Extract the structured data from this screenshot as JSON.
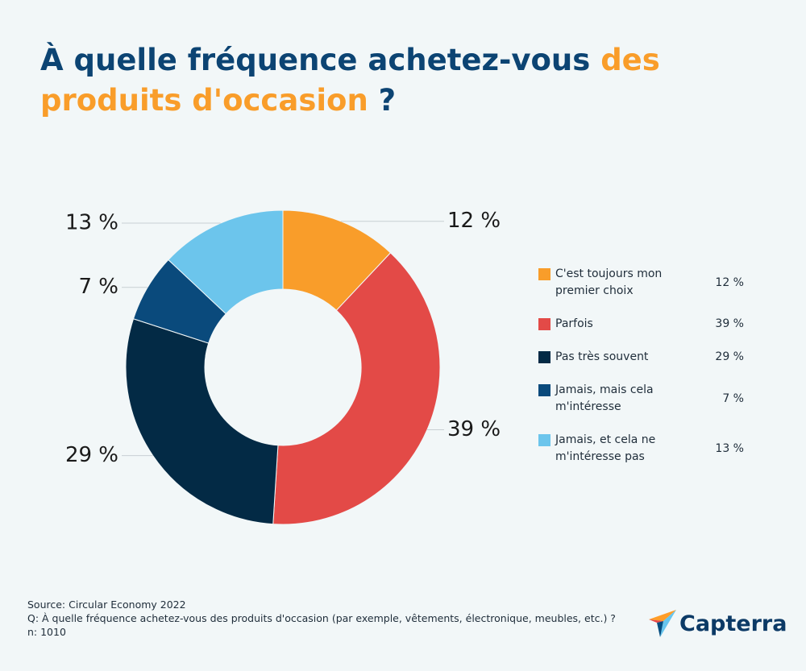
{
  "chart_data": {
    "type": "donut",
    "title": [
      "À quelle fréquence achetez-vous ",
      "des produits d'occasion",
      " ?"
    ],
    "categories": [
      "C'est toujours mon premier choix",
      "Parfois",
      "Pas très souvent",
      "Jamais, mais cela m'intéresse",
      "Jamais, et cela ne m'intéresse pas"
    ],
    "values": [
      12,
      39,
      29,
      7,
      13
    ],
    "value_labels": [
      "12 %",
      "39 %",
      "29 %",
      "7 %",
      "13 %"
    ],
    "colors": [
      "#f99d2a",
      "#e34a47",
      "#032a45",
      "#0a4a7c",
      "#6cc5ec"
    ],
    "legend": "right"
  },
  "footer": {
    "source": "Source: Circular Economy 2022",
    "question": "Q:  À quelle fréquence achetez-vous des produits d'occasion (par exemple, vêtements, électronique, meubles, etc.) ?",
    "n": "n: 1010"
  },
  "logo": {
    "text": "Capterra"
  }
}
